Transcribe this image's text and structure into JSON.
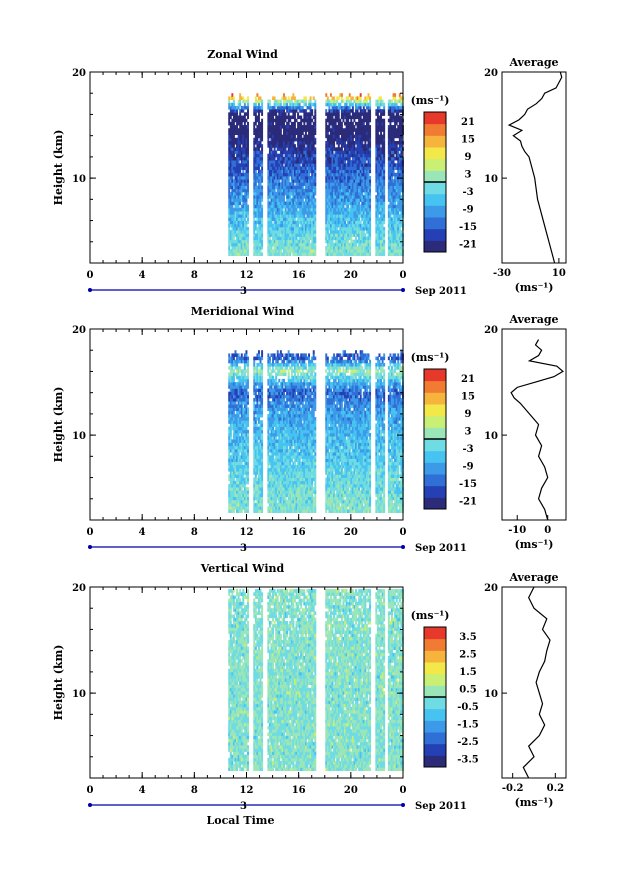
{
  "figure": {
    "time_axis_label": "Local Time",
    "date_label": "Sep 2011",
    "date_tick_label": "3"
  },
  "colors": {
    "background": "#ffffff",
    "axis": "#000000",
    "colormap": [
      "#2b2b7a",
      "#2540b5",
      "#2f6fd6",
      "#3c9ae8",
      "#46c3f0",
      "#6fdbe2",
      "#9be6b8",
      "#c9ef74",
      "#f2e84a",
      "#f6b43d",
      "#f27b34",
      "#e6392b"
    ]
  },
  "panels": [
    {
      "title": "Zonal Wind",
      "ylabel": "Height (km)",
      "unit_label": "(ms⁻¹)",
      "avg_title": "Average",
      "avg_xlabel": "(ms⁻¹)",
      "avg_ticks": [
        "-30",
        "10"
      ],
      "colorbar_ticks": [
        "21",
        "15",
        "9",
        "3",
        "-3",
        "-9",
        "-15",
        "-21"
      ]
    },
    {
      "title": "Meridional Wind",
      "ylabel": "Height (km)",
      "unit_label": "(ms⁻¹)",
      "avg_title": "Average",
      "avg_xlabel": "(ms⁻¹)",
      "avg_ticks": [
        "-10",
        "0"
      ],
      "colorbar_ticks": [
        "21",
        "15",
        "9",
        "3",
        "-3",
        "-9",
        "-15",
        "-21"
      ]
    },
    {
      "title": "Vertical Wind",
      "ylabel": "Height (km)",
      "unit_label": "(ms⁻¹)",
      "avg_title": "Average",
      "avg_xlabel": "(ms⁻¹)",
      "avg_ticks": [
        "-0.2",
        "0.2"
      ],
      "colorbar_ticks": [
        "3.5",
        "2.5",
        "1.5",
        "0.5",
        "-0.5",
        "-1.5",
        "-2.5",
        "-3.5"
      ]
    }
  ],
  "chart_data": [
    {
      "type": "heatmap",
      "title": "Zonal Wind",
      "xlabel": "",
      "ylabel": "Height (km)",
      "x_ticks": [
        "0",
        "4",
        "8",
        "12",
        "16",
        "20",
        "0"
      ],
      "y_ticks": [
        "10",
        "20"
      ],
      "xlim": [
        0,
        24
      ],
      "ylim": [
        2,
        20
      ],
      "clim": [
        -24,
        24
      ],
      "data_time_range": [
        10.6,
        24
      ],
      "data_top_km": [
        17.2,
        17.8
      ],
      "gaps_hours": [
        [
          12.1,
          12.4
        ],
        [
          13.2,
          13.5
        ],
        [
          17.3,
          18.0
        ],
        [
          21.5,
          21.8
        ],
        [
          22.6,
          22.8
        ]
      ],
      "description_profile": [
        {
          "height_km": 3,
          "value": 0
        },
        {
          "height_km": 6,
          "value": -6
        },
        {
          "height_km": 9,
          "value": -12
        },
        {
          "height_km": 12,
          "value": -18
        },
        {
          "height_km": 14,
          "value": -24
        },
        {
          "height_km": 16,
          "value": -24
        },
        {
          "height_km": 17,
          "value": 0
        },
        {
          "height_km": 17.6,
          "value": 18
        }
      ],
      "average_profile": {
        "xlim": [
          -30,
          15
        ],
        "x_ticks": [
          -30,
          10
        ],
        "height_km": [
          2,
          3,
          4,
          5,
          6,
          7,
          8,
          9,
          10,
          11,
          12,
          12.5,
          13,
          13.5,
          14,
          14.5,
          15,
          15.5,
          16,
          16.5,
          17,
          17.5,
          18,
          18.5,
          19,
          19.5,
          20
        ],
        "value": [
          7,
          5,
          3,
          1,
          -1,
          -3,
          -5,
          -6,
          -7,
          -9,
          -11,
          -14,
          -16,
          -17,
          -22,
          -16,
          -25,
          -18,
          -14,
          -12,
          -6,
          -2,
          0,
          8,
          10,
          12,
          11
        ]
      }
    },
    {
      "type": "heatmap",
      "title": "Meridional Wind",
      "xlabel": "",
      "ylabel": "Height (km)",
      "x_ticks": [
        "0",
        "4",
        "8",
        "12",
        "16",
        "20",
        "0"
      ],
      "y_ticks": [
        "10",
        "20"
      ],
      "xlim": [
        0,
        24
      ],
      "ylim": [
        2,
        20
      ],
      "clim": [
        -24,
        24
      ],
      "data_time_range": [
        10.6,
        24
      ],
      "data_top_km": [
        17.2,
        17.8
      ],
      "gaps_hours": [
        [
          12.1,
          12.4
        ],
        [
          13.2,
          13.5
        ],
        [
          17.3,
          18.0
        ],
        [
          21.5,
          21.8
        ],
        [
          22.6,
          22.8
        ]
      ],
      "description_profile": [
        {
          "height_km": 3,
          "value": 0
        },
        {
          "height_km": 6,
          "value": -3
        },
        {
          "height_km": 9,
          "value": -6
        },
        {
          "height_km": 12,
          "value": -9
        },
        {
          "height_km": 14,
          "value": -15
        },
        {
          "height_km": 16,
          "value": 3
        },
        {
          "height_km": 17,
          "value": -15
        }
      ],
      "average_profile": {
        "xlim": [
          -15,
          6
        ],
        "x_ticks": [
          -10,
          0
        ],
        "height_km": [
          2,
          3,
          4,
          5,
          6,
          7,
          8,
          9,
          10,
          11,
          12,
          13,
          13.5,
          14,
          14.5,
          15,
          15.5,
          16,
          16.5,
          17,
          17.5,
          18,
          18.5,
          19
        ],
        "value": [
          0,
          -1,
          -3,
          -2,
          0,
          -1,
          -3,
          -2,
          -4,
          -3,
          -6,
          -9,
          -11,
          -12,
          -10,
          -4,
          2,
          5,
          3,
          -6,
          -3,
          -2,
          -4,
          -3
        ]
      }
    },
    {
      "type": "heatmap",
      "title": "Vertical Wind",
      "xlabel": "Local Time",
      "ylabel": "Height (km)",
      "x_ticks": [
        "0",
        "4",
        "8",
        "12",
        "16",
        "20",
        "0"
      ],
      "y_ticks": [
        "10",
        "20"
      ],
      "xlim": [
        0,
        24
      ],
      "ylim": [
        2,
        20
      ],
      "clim": [
        -4,
        4
      ],
      "data_time_range": [
        10.6,
        24
      ],
      "data_top_km": [
        19.8,
        19.8
      ],
      "gaps_hours": [
        [
          12.1,
          12.4
        ],
        [
          13.2,
          13.5
        ],
        [
          17.3,
          18.0
        ],
        [
          21.5,
          21.8
        ],
        [
          22.6,
          22.8
        ]
      ],
      "description_profile": [
        {
          "height_km": 3,
          "value": 0
        },
        {
          "height_km": 10,
          "value": 0
        },
        {
          "height_km": 19,
          "value": 0
        }
      ],
      "average_profile": {
        "xlim": [
          -0.3,
          0.3
        ],
        "x_ticks": [
          -0.2,
          0.2
        ],
        "height_km": [
          2,
          3,
          4,
          5,
          6,
          7,
          8,
          9,
          10,
          11,
          12,
          13,
          14,
          15,
          16,
          17,
          18,
          19,
          20
        ],
        "value": [
          -0.05,
          -0.1,
          0.0,
          -0.05,
          0.05,
          0.1,
          0.05,
          0.08,
          0.05,
          0.02,
          0.05,
          0.1,
          0.12,
          0.15,
          0.08,
          0.12,
          0.0,
          -0.05,
          0.0
        ]
      }
    }
  ]
}
